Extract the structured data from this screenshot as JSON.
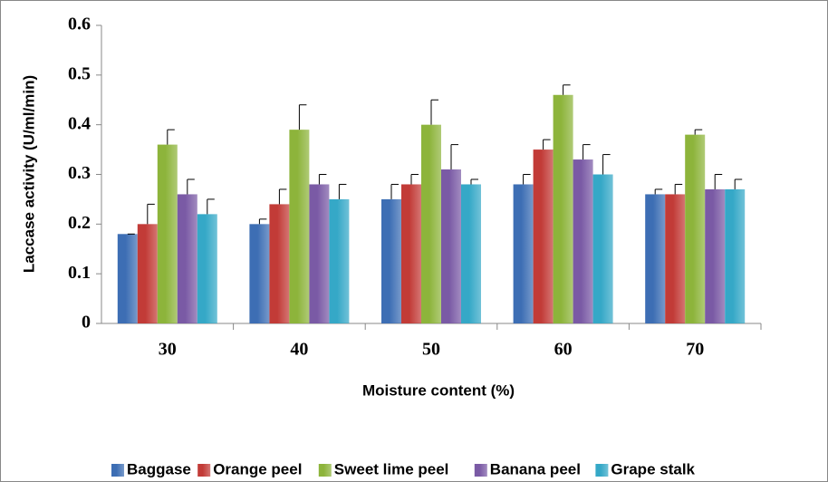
{
  "chart_data": {
    "type": "bar",
    "x_label": "Moisture content (%)",
    "y_label": "Laccase  activity (U/ml/min)",
    "categories": [
      "30",
      "40",
      "50",
      "60",
      "70"
    ],
    "series": [
      {
        "name": "Baggase",
        "color": "#3d6eb4",
        "values": [
          0.18,
          0.2,
          0.25,
          0.28,
          0.26
        ],
        "errors": [
          0,
          0.01,
          0.03,
          0.02,
          0.01
        ]
      },
      {
        "name": "Orange peel",
        "color": "#c23b37",
        "values": [
          0.2,
          0.24,
          0.28,
          0.35,
          0.26
        ],
        "errors": [
          0.04,
          0.03,
          0.02,
          0.02,
          0.02
        ]
      },
      {
        "name": "Sweet lime peel",
        "color": "#8db43b",
        "values": [
          0.36,
          0.39,
          0.4,
          0.46,
          0.38
        ],
        "errors": [
          0.03,
          0.05,
          0.05,
          0.02,
          0.01
        ]
      },
      {
        "name": "Banana peel",
        "color": "#7a5aa5",
        "values": [
          0.26,
          0.28,
          0.31,
          0.33,
          0.27
        ],
        "errors": [
          0.03,
          0.02,
          0.05,
          0.03,
          0.03
        ]
      },
      {
        "name": "Grape stalk",
        "color": "#35a8c7",
        "values": [
          0.22,
          0.25,
          0.28,
          0.3,
          0.27
        ],
        "errors": [
          0.03,
          0.03,
          0.01,
          0.04,
          0.02
        ]
      }
    ],
    "ylim": [
      0,
      0.6
    ],
    "yticks": [
      0,
      0.1,
      0.2,
      0.3,
      0.4,
      0.5,
      0.6
    ],
    "grid": false,
    "legend": "bottom"
  }
}
